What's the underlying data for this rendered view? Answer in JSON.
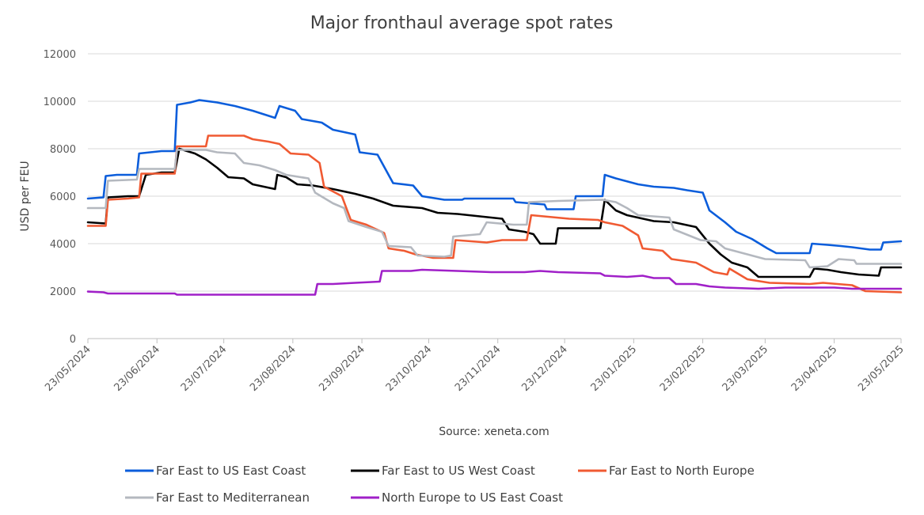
{
  "chart_data": {
    "type": "line",
    "title": "Major fronthaul average spot rates",
    "xlabel": "Source: xeneta.com",
    "ylabel": "USD per FEU",
    "ylim": [
      0,
      12000
    ],
    "yticks": [
      0,
      2000,
      4000,
      6000,
      8000,
      10000,
      12000
    ],
    "xlim": [
      "2024-05-23",
      "2025-05-23"
    ],
    "xticks": [
      "23/05/2024",
      "23/06/2024",
      "23/07/2024",
      "23/08/2024",
      "23/09/2024",
      "23/10/2024",
      "23/11/2024",
      "23/12/2024",
      "23/01/2025",
      "23/02/2025",
      "23/03/2025",
      "23/04/2025",
      "23/05/2025"
    ],
    "grid": true,
    "legend_position": "bottom",
    "series": [
      {
        "name": "Far East to US East Coast",
        "color": "#0b5ddb",
        "points": [
          [
            "2024-05-23",
            5900
          ],
          [
            "2024-05-30",
            5950
          ],
          [
            "2024-05-31",
            6850
          ],
          [
            "2024-06-05",
            6900
          ],
          [
            "2024-06-14",
            6900
          ],
          [
            "2024-06-15",
            7800
          ],
          [
            "2024-06-25",
            7900
          ],
          [
            "2024-07-01",
            7900
          ],
          [
            "2024-07-02",
            9850
          ],
          [
            "2024-07-08",
            9950
          ],
          [
            "2024-07-12",
            10050
          ],
          [
            "2024-07-20",
            9950
          ],
          [
            "2024-07-28",
            9800
          ],
          [
            "2024-08-05",
            9600
          ],
          [
            "2024-08-15",
            9300
          ],
          [
            "2024-08-17",
            9800
          ],
          [
            "2024-08-24",
            9600
          ],
          [
            "2024-08-27",
            9250
          ],
          [
            "2024-09-05",
            9100
          ],
          [
            "2024-09-10",
            8800
          ],
          [
            "2024-09-20",
            8600
          ],
          [
            "2024-09-22",
            7850
          ],
          [
            "2024-09-30",
            7750
          ],
          [
            "2024-10-07",
            6550
          ],
          [
            "2024-10-16",
            6450
          ],
          [
            "2024-10-20",
            6000
          ],
          [
            "2024-10-30",
            5850
          ],
          [
            "2024-11-07",
            5850
          ],
          [
            "2024-11-08",
            5900
          ],
          [
            "2024-11-30",
            5900
          ],
          [
            "2024-12-01",
            5750
          ],
          [
            "2024-12-14",
            5650
          ],
          [
            "2024-12-15",
            5450
          ],
          [
            "2024-12-27",
            5450
          ],
          [
            "2024-12-28",
            6000
          ],
          [
            "2025-01-09",
            6000
          ],
          [
            "2025-01-10",
            6900
          ],
          [
            "2025-01-15",
            6750
          ],
          [
            "2025-01-25",
            6500
          ],
          [
            "2025-02-01",
            6400
          ],
          [
            "2025-02-10",
            6350
          ],
          [
            "2025-02-16",
            6250
          ],
          [
            "2025-02-23",
            6150
          ],
          [
            "2025-02-26",
            5400
          ],
          [
            "2025-03-05",
            4900
          ],
          [
            "2025-03-10",
            4500
          ],
          [
            "2025-03-17",
            4200
          ],
          [
            "2025-03-24",
            3800
          ],
          [
            "2025-03-28",
            3600
          ],
          [
            "2025-04-12",
            3600
          ],
          [
            "2025-04-13",
            4000
          ],
          [
            "2025-04-20",
            3950
          ],
          [
            "2025-04-26",
            3900
          ],
          [
            "2025-05-01",
            3850
          ],
          [
            "2025-05-09",
            3750
          ],
          [
            "2025-05-14",
            3750
          ],
          [
            "2025-05-15",
            4050
          ],
          [
            "2025-05-23",
            4100
          ]
        ]
      },
      {
        "name": "Far East to US West Coast",
        "color": "#000000",
        "points": [
          [
            "2024-05-23",
            4900
          ],
          [
            "2024-05-31",
            4850
          ],
          [
            "2024-06-01",
            5950
          ],
          [
            "2024-06-10",
            6000
          ],
          [
            "2024-06-15",
            6000
          ],
          [
            "2024-06-18",
            6900
          ],
          [
            "2024-06-25",
            7000
          ],
          [
            "2024-07-01",
            7000
          ],
          [
            "2024-07-03",
            8000
          ],
          [
            "2024-07-10",
            7800
          ],
          [
            "2024-07-15",
            7550
          ],
          [
            "2024-07-20",
            7200
          ],
          [
            "2024-07-25",
            6800
          ],
          [
            "2024-08-01",
            6750
          ],
          [
            "2024-08-05",
            6500
          ],
          [
            "2024-08-10",
            6400
          ],
          [
            "2024-08-15",
            6300
          ],
          [
            "2024-08-16",
            6900
          ],
          [
            "2024-08-20",
            6800
          ],
          [
            "2024-08-25",
            6500
          ],
          [
            "2024-09-01",
            6450
          ],
          [
            "2024-09-10",
            6300
          ],
          [
            "2024-09-20",
            6100
          ],
          [
            "2024-09-28",
            5900
          ],
          [
            "2024-10-07",
            5600
          ],
          [
            "2024-10-20",
            5500
          ],
          [
            "2024-10-27",
            5300
          ],
          [
            "2024-11-05",
            5250
          ],
          [
            "2024-11-15",
            5150
          ],
          [
            "2024-11-25",
            5050
          ],
          [
            "2024-11-28",
            4600
          ],
          [
            "2024-12-05",
            4500
          ],
          [
            "2024-12-09",
            4400
          ],
          [
            "2024-12-12",
            4000
          ],
          [
            "2024-12-19",
            4000
          ],
          [
            "2024-12-20",
            4650
          ],
          [
            "2025-01-08",
            4650
          ],
          [
            "2025-01-10",
            5850
          ],
          [
            "2025-01-15",
            5400
          ],
          [
            "2025-01-20",
            5200
          ],
          [
            "2025-02-01",
            4950
          ],
          [
            "2025-02-10",
            4900
          ],
          [
            "2025-02-20",
            4700
          ],
          [
            "2025-02-26",
            4000
          ],
          [
            "2025-03-03",
            3550
          ],
          [
            "2025-03-08",
            3200
          ],
          [
            "2025-03-15",
            3000
          ],
          [
            "2025-03-20",
            2600
          ],
          [
            "2025-04-12",
            2600
          ],
          [
            "2025-04-14",
            2950
          ],
          [
            "2025-04-20",
            2900
          ],
          [
            "2025-04-26",
            2800
          ],
          [
            "2025-05-04",
            2700
          ],
          [
            "2025-05-13",
            2650
          ],
          [
            "2025-05-14",
            3000
          ],
          [
            "2025-05-23",
            3000
          ]
        ]
      },
      {
        "name": "Far East to North Europe",
        "color": "#f05a32",
        "points": [
          [
            "2024-05-23",
            4750
          ],
          [
            "2024-05-31",
            4750
          ],
          [
            "2024-06-01",
            5850
          ],
          [
            "2024-06-10",
            5900
          ],
          [
            "2024-06-15",
            5950
          ],
          [
            "2024-06-16",
            6950
          ],
          [
            "2024-07-01",
            6950
          ],
          [
            "2024-07-02",
            8100
          ],
          [
            "2024-07-15",
            8100
          ],
          [
            "2024-07-16",
            8550
          ],
          [
            "2024-07-25",
            8550
          ],
          [
            "2024-08-01",
            8550
          ],
          [
            "2024-08-05",
            8400
          ],
          [
            "2024-08-12",
            8300
          ],
          [
            "2024-08-17",
            8200
          ],
          [
            "2024-08-22",
            7800
          ],
          [
            "2024-08-30",
            7750
          ],
          [
            "2024-09-04",
            7400
          ],
          [
            "2024-09-06",
            6400
          ],
          [
            "2024-09-14",
            6000
          ],
          [
            "2024-09-18",
            5000
          ],
          [
            "2024-09-25",
            4800
          ],
          [
            "2024-10-03",
            4450
          ],
          [
            "2024-10-05",
            3800
          ],
          [
            "2024-10-12",
            3700
          ],
          [
            "2024-10-17",
            3550
          ],
          [
            "2024-10-25",
            3400
          ],
          [
            "2024-11-03",
            3400
          ],
          [
            "2024-11-04",
            4150
          ],
          [
            "2024-11-18",
            4050
          ],
          [
            "2024-11-25",
            4150
          ],
          [
            "2024-12-06",
            4150
          ],
          [
            "2024-12-08",
            5200
          ],
          [
            "2024-12-25",
            5050
          ],
          [
            "2025-01-07",
            5000
          ],
          [
            "2025-01-10",
            4900
          ],
          [
            "2025-01-18",
            4750
          ],
          [
            "2025-01-25",
            4350
          ],
          [
            "2025-01-27",
            3800
          ],
          [
            "2025-02-05",
            3700
          ],
          [
            "2025-02-09",
            3350
          ],
          [
            "2025-02-20",
            3200
          ],
          [
            "2025-02-28",
            2800
          ],
          [
            "2025-03-06",
            2700
          ],
          [
            "2025-03-07",
            2950
          ],
          [
            "2025-03-15",
            2500
          ],
          [
            "2025-03-25",
            2350
          ],
          [
            "2025-04-12",
            2300
          ],
          [
            "2025-04-18",
            2350
          ],
          [
            "2025-05-01",
            2250
          ],
          [
            "2025-05-07",
            2000
          ],
          [
            "2025-05-23",
            1950
          ]
        ]
      },
      {
        "name": "Far East to Mediterranean",
        "color": "#b4b8bf",
        "points": [
          [
            "2024-05-23",
            5500
          ],
          [
            "2024-05-31",
            5500
          ],
          [
            "2024-06-01",
            6650
          ],
          [
            "2024-06-14",
            6700
          ],
          [
            "2024-06-15",
            7150
          ],
          [
            "2024-07-01",
            7150
          ],
          [
            "2024-07-02",
            7950
          ],
          [
            "2024-07-15",
            7950
          ],
          [
            "2024-07-20",
            7850
          ],
          [
            "2024-07-28",
            7800
          ],
          [
            "2024-08-01",
            7400
          ],
          [
            "2024-08-08",
            7300
          ],
          [
            "2024-08-15",
            7100
          ],
          [
            "2024-08-20",
            6900
          ],
          [
            "2024-08-30",
            6750
          ],
          [
            "2024-09-02",
            6150
          ],
          [
            "2024-09-10",
            5700
          ],
          [
            "2024-09-15",
            5500
          ],
          [
            "2024-09-17",
            4950
          ],
          [
            "2024-09-25",
            4700
          ],
          [
            "2024-10-02",
            4500
          ],
          [
            "2024-10-05",
            3900
          ],
          [
            "2024-10-15",
            3850
          ],
          [
            "2024-10-18",
            3500
          ],
          [
            "2024-10-30",
            3450
          ],
          [
            "2024-11-02",
            3500
          ],
          [
            "2024-11-03",
            4300
          ],
          [
            "2024-11-15",
            4400
          ],
          [
            "2024-11-18",
            4900
          ],
          [
            "2024-11-30",
            4800
          ],
          [
            "2024-12-06",
            4800
          ],
          [
            "2024-12-07",
            5750
          ],
          [
            "2024-12-20",
            5800
          ],
          [
            "2025-01-09",
            5850
          ],
          [
            "2025-01-15",
            5750
          ],
          [
            "2025-01-20",
            5500
          ],
          [
            "2025-01-25",
            5200
          ],
          [
            "2025-02-08",
            5100
          ],
          [
            "2025-02-10",
            4600
          ],
          [
            "2025-02-22",
            4150
          ],
          [
            "2025-03-01",
            4100
          ],
          [
            "2025-03-05",
            3800
          ],
          [
            "2025-03-15",
            3550
          ],
          [
            "2025-03-23",
            3350
          ],
          [
            "2025-04-10",
            3300
          ],
          [
            "2025-04-12",
            3000
          ],
          [
            "2025-04-20",
            3050
          ],
          [
            "2025-04-25",
            3350
          ],
          [
            "2025-05-02",
            3300
          ],
          [
            "2025-05-03",
            3150
          ],
          [
            "2025-05-23",
            3150
          ]
        ]
      },
      {
        "name": "North Europe to US East Coast",
        "color": "#a020c8",
        "points": [
          [
            "2024-05-23",
            1980
          ],
          [
            "2024-05-30",
            1950
          ],
          [
            "2024-06-01",
            1900
          ],
          [
            "2024-06-15",
            1900
          ],
          [
            "2024-07-01",
            1900
          ],
          [
            "2024-07-02",
            1850
          ],
          [
            "2024-07-15",
            1850
          ],
          [
            "2024-08-15",
            1850
          ],
          [
            "2024-09-02",
            1850
          ],
          [
            "2024-09-03",
            2300
          ],
          [
            "2024-09-10",
            2300
          ],
          [
            "2024-09-20",
            2350
          ],
          [
            "2024-10-01",
            2400
          ],
          [
            "2024-10-02",
            2850
          ],
          [
            "2024-10-15",
            2850
          ],
          [
            "2024-10-20",
            2900
          ],
          [
            "2024-11-05",
            2850
          ],
          [
            "2024-11-20",
            2800
          ],
          [
            "2024-12-05",
            2800
          ],
          [
            "2024-12-12",
            2850
          ],
          [
            "2024-12-20",
            2800
          ],
          [
            "2025-01-08",
            2750
          ],
          [
            "2025-01-10",
            2650
          ],
          [
            "2025-01-20",
            2600
          ],
          [
            "2025-01-27",
            2650
          ],
          [
            "2025-02-01",
            2550
          ],
          [
            "2025-02-08",
            2550
          ],
          [
            "2025-02-11",
            2300
          ],
          [
            "2025-02-20",
            2300
          ],
          [
            "2025-02-26",
            2200
          ],
          [
            "2025-03-05",
            2150
          ],
          [
            "2025-03-20",
            2100
          ],
          [
            "2025-04-01",
            2150
          ],
          [
            "2025-04-23",
            2150
          ],
          [
            "2025-05-01",
            2100
          ],
          [
            "2025-05-23",
            2100
          ]
        ]
      }
    ]
  }
}
